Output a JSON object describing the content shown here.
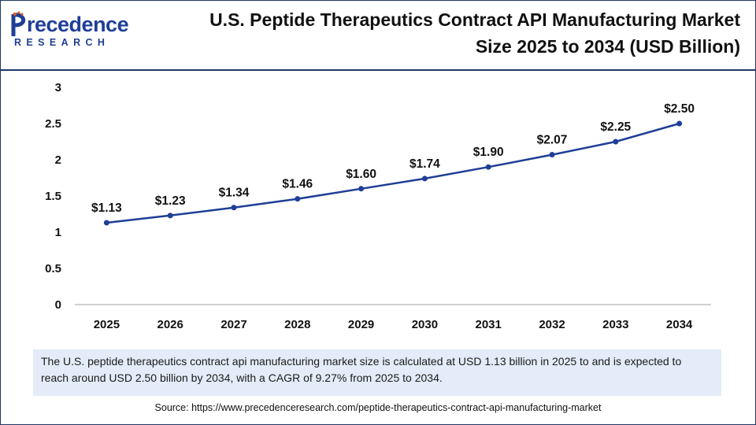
{
  "header": {
    "logo_main": "recedence",
    "logo_sub": "RESEARCH",
    "title_line1": "U.S. Peptide Therapeutics Contract API Manufacturing Market",
    "title_line2": "Size 2025 to 2034 (USD Billion)"
  },
  "colors": {
    "line": "#1f3f96",
    "axis": "#bfbfbf",
    "brand": "#1f3f96"
  },
  "chart_data": {
    "type": "line",
    "title": "U.S. Peptide Therapeutics Contract API Manufacturing Market Size 2025 to 2034 (USD Billion)",
    "x": [
      "2025",
      "2026",
      "2027",
      "2028",
      "2029",
      "2030",
      "2031",
      "2032",
      "2033",
      "2034"
    ],
    "values": [
      1.13,
      1.23,
      1.34,
      1.46,
      1.6,
      1.74,
      1.9,
      2.07,
      2.25,
      2.5
    ],
    "data_labels": [
      "$1.13",
      "$1.23",
      "$1.34",
      "$1.46",
      "$1.60",
      "$1.74",
      "$1.90",
      "$2.07",
      "$2.25",
      "$2.50"
    ],
    "yticks": [
      "0",
      "0.5",
      "1",
      "1.5",
      "2",
      "2.5",
      "3"
    ],
    "ylim": [
      0,
      3
    ],
    "xlabel": "",
    "ylabel": "",
    "grid": false,
    "legend": "none"
  },
  "footer": {
    "description": "The U.S. peptide therapeutics contract api manufacturing market size is calculated at USD 1.13 billion in 2025 to and is expected to reach around USD 2.50 billion by 2034, with a CAGR of 9.27% from 2025 to 2034.",
    "source": "Source: https://www.precedenceresearch.com/peptide-therapeutics-contract-api-manufacturing-market"
  }
}
